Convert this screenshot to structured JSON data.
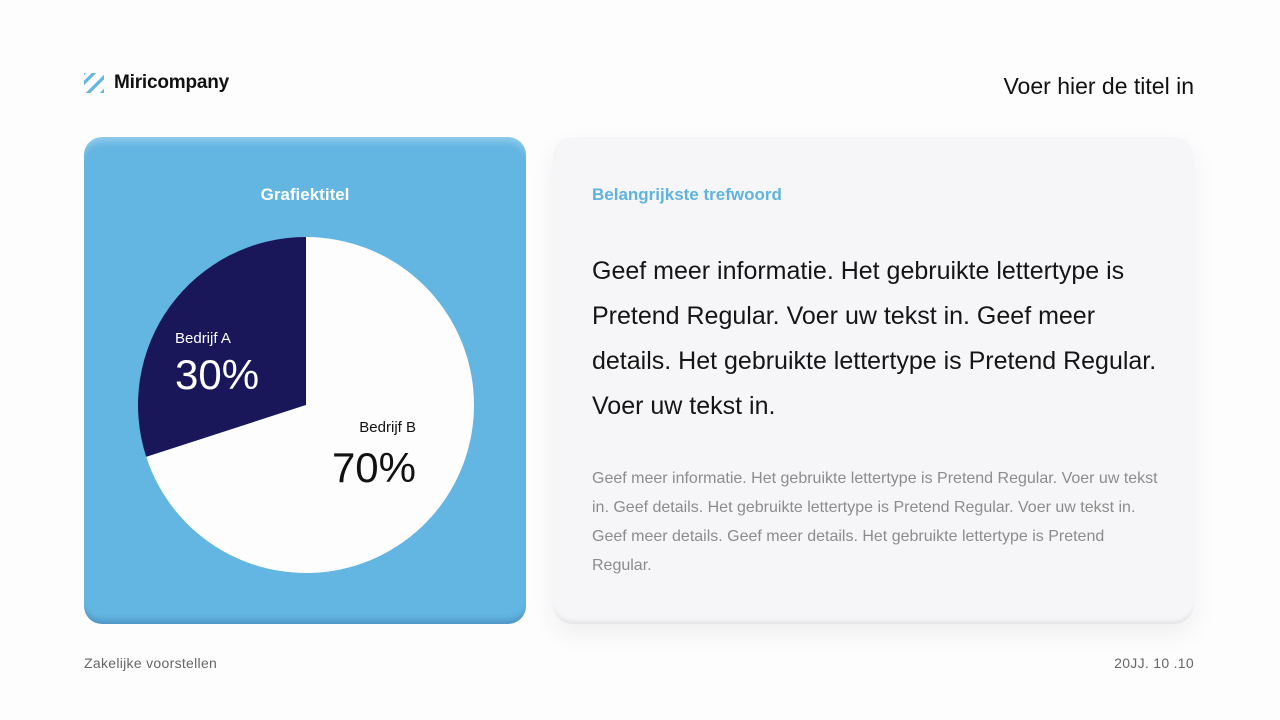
{
  "brand": {
    "name": "Miricompany",
    "logo_icon": "striped-logo-icon",
    "logo_color": "#63b5e2"
  },
  "header": {
    "title": "Voer hier de titel in"
  },
  "chart": {
    "card_color": "#63b5e2",
    "title": "Grafiektitel",
    "slices": [
      {
        "label": "Bedrijf A",
        "percent_text": "30%",
        "color": "#19175a",
        "label_color": "#ffffff"
      },
      {
        "label": "Bedrijf B",
        "percent_text": "70%",
        "color": "#fdfdfd",
        "label_color": "#111111"
      }
    ]
  },
  "chart_data": {
    "type": "pie",
    "title": "Grafiektitel",
    "categories": [
      "Bedrijf A",
      "Bedrijf B"
    ],
    "values": [
      30,
      70
    ],
    "colors": [
      "#19175a",
      "#fdfdfd"
    ]
  },
  "text_card": {
    "keyword": "Belangrijkste trefwoord",
    "lead": "Geef meer informatie. Het gebruikte lettertype is Pretend Regular. Voer uw tekst in. Geef meer details. Het gebruikte lettertype is Pretend Regular. Voer uw tekst in.",
    "body": "Geef meer informatie. Het gebruikte lettertype is Pretend Regular. Voer uw tekst in. Geef details. Het gebruikte lettertype is Pretend Regular. Voer uw tekst in. Geef meer details. Geef meer details. Het gebruikte lettertype is Pretend Regular.",
    "keyword_color": "#5fb3df"
  },
  "footer": {
    "left": "Zakelijke voorstellen",
    "right": "20JJ. 10 .10"
  }
}
